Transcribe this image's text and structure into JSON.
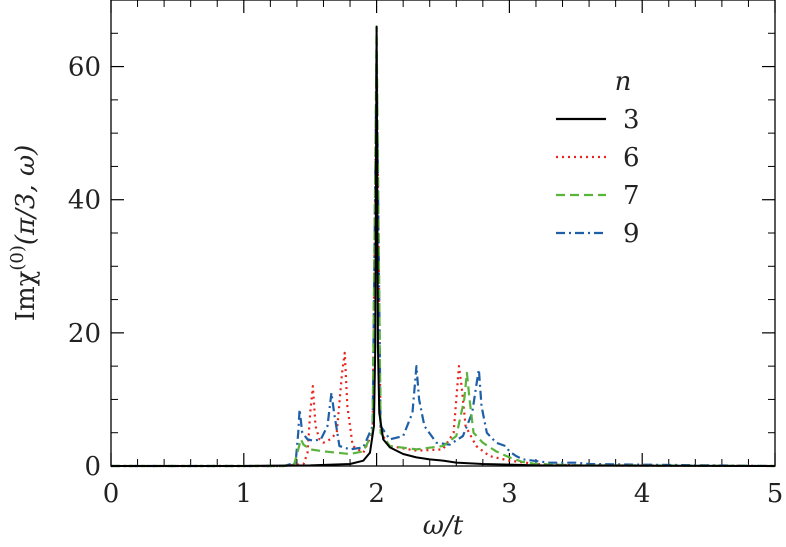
{
  "chart_data": {
    "type": "line",
    "xlabel": "ω/t",
    "ylabel": "Imχ(0)(π/3, ω)",
    "ylabel_parts": {
      "main": "Imχ",
      "sup": "(0)",
      "args": "(π/3, ω)"
    },
    "xlim": [
      0,
      5
    ],
    "ylim": [
      0,
      70
    ],
    "xticks": [
      0,
      1,
      2,
      3,
      4,
      5
    ],
    "yticks": [
      0,
      20,
      40,
      60
    ],
    "legend": {
      "title": "n",
      "placement": "right"
    },
    "series": [
      {
        "name": "3",
        "color": "#000000",
        "style": "solid",
        "points": [
          [
            0,
            0
          ],
          [
            1.0,
            0
          ],
          [
            1.5,
            0.1
          ],
          [
            1.8,
            0.3
          ],
          [
            1.9,
            0.8
          ],
          [
            1.95,
            2.0
          ],
          [
            1.98,
            6
          ],
          [
            1.99,
            18
          ],
          [
            2.0,
            66
          ],
          [
            2.01,
            18
          ],
          [
            2.02,
            8
          ],
          [
            2.05,
            4
          ],
          [
            2.1,
            2.8
          ],
          [
            2.2,
            1.8
          ],
          [
            2.3,
            1.3
          ],
          [
            2.4,
            1.0
          ],
          [
            2.5,
            0.8
          ],
          [
            2.6,
            0.5
          ],
          [
            2.8,
            0.3
          ],
          [
            3.0,
            0.2
          ],
          [
            3.2,
            0.1
          ],
          [
            5,
            0
          ]
        ]
      },
      {
        "name": "6",
        "color": "#e8231b",
        "style": "dotted",
        "points": [
          [
            0,
            0
          ],
          [
            1.3,
            0
          ],
          [
            1.45,
            0.3
          ],
          [
            1.48,
            2
          ],
          [
            1.5,
            8
          ],
          [
            1.52,
            12
          ],
          [
            1.54,
            6
          ],
          [
            1.57,
            4
          ],
          [
            1.6,
            3.5
          ],
          [
            1.65,
            4
          ],
          [
            1.7,
            5
          ],
          [
            1.74,
            14
          ],
          [
            1.76,
            17
          ],
          [
            1.78,
            9
          ],
          [
            1.82,
            3
          ],
          [
            1.9,
            2
          ],
          [
            1.97,
            5
          ],
          [
            2.0,
            62
          ],
          [
            2.03,
            5
          ],
          [
            2.1,
            3
          ],
          [
            2.3,
            2.3
          ],
          [
            2.5,
            2.5
          ],
          [
            2.58,
            5
          ],
          [
            2.62,
            15
          ],
          [
            2.64,
            12
          ],
          [
            2.67,
            6
          ],
          [
            2.75,
            3
          ],
          [
            2.85,
            1.5
          ],
          [
            3.0,
            0.8
          ],
          [
            3.2,
            0.3
          ],
          [
            3.5,
            0.1
          ],
          [
            5,
            0
          ]
        ]
      },
      {
        "name": "7",
        "color": "#5ab33a",
        "style": "dashed",
        "points": [
          [
            0,
            0
          ],
          [
            1.3,
            0
          ],
          [
            1.38,
            0.3
          ],
          [
            1.41,
            2.5
          ],
          [
            1.43,
            4
          ],
          [
            1.45,
            3.2
          ],
          [
            1.5,
            2.5
          ],
          [
            1.6,
            2.2
          ],
          [
            1.7,
            2
          ],
          [
            1.8,
            1.8
          ],
          [
            1.9,
            2.2
          ],
          [
            1.97,
            5
          ],
          [
            2.0,
            66
          ],
          [
            2.03,
            5
          ],
          [
            2.1,
            3
          ],
          [
            2.3,
            2.5
          ],
          [
            2.5,
            3
          ],
          [
            2.6,
            4.5
          ],
          [
            2.66,
            10
          ],
          [
            2.68,
            14
          ],
          [
            2.7,
            10
          ],
          [
            2.73,
            5
          ],
          [
            2.8,
            3.5
          ],
          [
            2.9,
            2.2
          ],
          [
            3.0,
            1.3
          ],
          [
            3.1,
            0.6
          ],
          [
            3.2,
            0.3
          ],
          [
            3.5,
            0.1
          ],
          [
            5,
            0
          ]
        ]
      },
      {
        "name": "9",
        "color": "#1e5fa8",
        "style": "dashdot",
        "points": [
          [
            0,
            0
          ],
          [
            1.3,
            0
          ],
          [
            1.39,
            0.5
          ],
          [
            1.41,
            5
          ],
          [
            1.42,
            8.5
          ],
          [
            1.44,
            5
          ],
          [
            1.48,
            4
          ],
          [
            1.52,
            3.8
          ],
          [
            1.58,
            4
          ],
          [
            1.63,
            6
          ],
          [
            1.66,
            11
          ],
          [
            1.68,
            8
          ],
          [
            1.72,
            3
          ],
          [
            1.8,
            2.5
          ],
          [
            1.9,
            2.8
          ],
          [
            1.97,
            6
          ],
          [
            2.0,
            62
          ],
          [
            2.03,
            6
          ],
          [
            2.1,
            4
          ],
          [
            2.2,
            4.5
          ],
          [
            2.27,
            8
          ],
          [
            2.3,
            15
          ],
          [
            2.32,
            10
          ],
          [
            2.36,
            6
          ],
          [
            2.45,
            3.5
          ],
          [
            2.55,
            3.2
          ],
          [
            2.65,
            4.5
          ],
          [
            2.72,
            8
          ],
          [
            2.75,
            12
          ],
          [
            2.77,
            14.5
          ],
          [
            2.79,
            9
          ],
          [
            2.83,
            5
          ],
          [
            2.9,
            3.5
          ],
          [
            2.97,
            3
          ],
          [
            3.0,
            2.2
          ],
          [
            3.05,
            1.5
          ],
          [
            3.1,
            1
          ],
          [
            3.3,
            0.5
          ],
          [
            3.5,
            0.5
          ],
          [
            3.6,
            0.3
          ],
          [
            4.0,
            0.2
          ],
          [
            4.5,
            0.1
          ],
          [
            5,
            0
          ]
        ]
      }
    ]
  }
}
